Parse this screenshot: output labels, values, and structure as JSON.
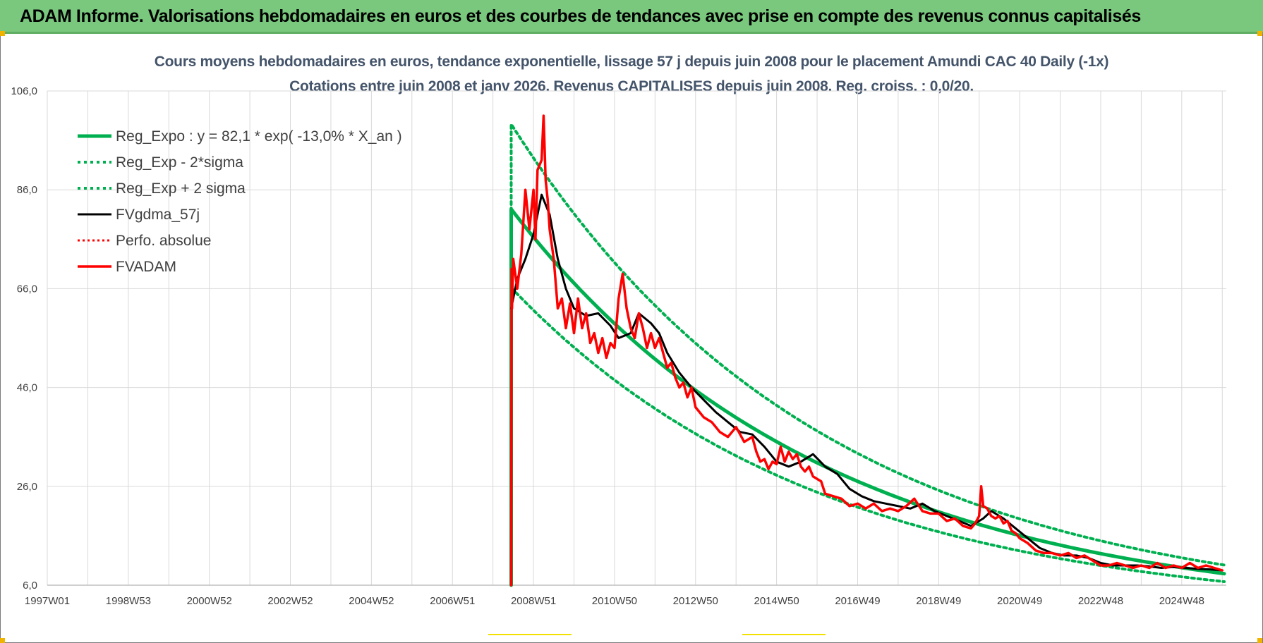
{
  "banner": {
    "title": "ADAM Informe. Valorisations hebdomadaires en euros et des courbes de tendances avec prise en compte des revenus connus capitalisés"
  },
  "colors": {
    "banner_bg": "#79c87e",
    "title_text": "#44546a",
    "reg_green": "#00b050",
    "fv_black": "#000000",
    "fvadam_red": "#ff0000"
  },
  "chart_data": {
    "type": "line",
    "title": "Cours moyens hebdomadaires en euros, tendance exponentielle, lissage 57 j depuis juin 2008 pour le placement Amundi CAC 40 Daily (-1x)",
    "subtitle": "Cotations entre juin 2008 et janv 2026. Revenus CAPITALISES depuis juin 2008. Reg. croiss. : 0,0/20.",
    "xlabel": "",
    "ylabel": "",
    "xlim": [
      1997.0,
      2026.1
    ],
    "ylim": [
      6,
      106
    ],
    "grid": true,
    "legend_position": "top-left",
    "x_tick_labels": [
      "1997W01",
      "1998W53",
      "2000W52",
      "2002W52",
      "2004W52",
      "2006W51",
      "2008W51",
      "2010W50",
      "2012W50",
      "2014W50",
      "2016W49",
      "2018W49",
      "2020W49",
      "2022W48",
      "2024W48"
    ],
    "x_tick_values": [
      1997.0,
      1999.0,
      2001.0,
      2003.0,
      2005.0,
      2007.0,
      2009.0,
      2011.0,
      2013.0,
      2015.0,
      2017.0,
      2019.0,
      2021.0,
      2023.0,
      2025.0
    ],
    "y_ticks": [
      6,
      26,
      46,
      66,
      86,
      106
    ],
    "y_tick_labels": [
      "6,0",
      "26,0",
      "46,0",
      "66,0",
      "86,0",
      "106,0"
    ],
    "series": [
      {
        "name": "Reg_Expo : y = 82,1 * exp( -13,0% *  X_an )",
        "style": "solid-green",
        "model": {
          "a": 82.1,
          "b": -0.13,
          "x0": 2008.45
        }
      },
      {
        "name": "Reg_Exp - 2*sigma",
        "style": "dotted-green",
        "model": {
          "a": 66.2,
          "b": -0.13,
          "x0": 2008.45
        }
      },
      {
        "name": "Reg_Exp + 2 sigma",
        "style": "dotted-green",
        "model": {
          "a": 99.3,
          "b": -0.13,
          "x0": 2008.45
        }
      },
      {
        "name": "FVgdma_57j",
        "style": "solid-black",
        "x": [
          2008.45,
          2008.6,
          2008.8,
          2009.0,
          2009.2,
          2009.4,
          2009.6,
          2009.8,
          2010.0,
          2010.3,
          2010.6,
          2010.9,
          2011.1,
          2011.4,
          2011.6,
          2011.9,
          2012.1,
          2012.3,
          2012.6,
          2012.9,
          2013.2,
          2013.5,
          2013.8,
          2014.1,
          2014.4,
          2014.7,
          2015.0,
          2015.3,
          2015.6,
          2015.9,
          2016.2,
          2016.5,
          2016.8,
          2017.1,
          2017.4,
          2017.7,
          2018.0,
          2018.3,
          2018.6,
          2018.9,
          2019.2,
          2019.5,
          2019.8,
          2020.1,
          2020.3,
          2020.6,
          2020.9,
          2021.2,
          2021.5,
          2021.8,
          2022.1,
          2022.4,
          2022.7,
          2023.0,
          2023.3,
          2023.6,
          2023.9,
          2024.2,
          2024.5,
          2024.8,
          2025.1,
          2025.4,
          2025.7,
          2026.0
        ],
        "y": [
          62.0,
          68.0,
          72.0,
          77.0,
          85.0,
          81.0,
          72.0,
          66.0,
          62.0,
          60.5,
          61.0,
          58.5,
          56.0,
          57.0,
          61.0,
          59.0,
          57.0,
          53.0,
          49.0,
          46.0,
          43.5,
          41.0,
          39.0,
          37.0,
          36.5,
          34.0,
          31.0,
          30.0,
          31.0,
          32.5,
          30.0,
          28.5,
          25.5,
          24.0,
          23.0,
          22.5,
          22.0,
          21.5,
          22.5,
          21.0,
          20.0,
          19.0,
          18.0,
          19.5,
          21.0,
          19.5,
          17.5,
          15.5,
          13.5,
          12.5,
          12.0,
          12.0,
          11.5,
          10.5,
          10.0,
          10.0,
          10.0,
          9.8,
          9.5,
          9.7,
          9.5,
          9.3,
          9.2,
          9.0
        ]
      },
      {
        "name": "Perfo. absolue",
        "style": "dotted-red",
        "x": [],
        "y": []
      },
      {
        "name": "FVADAM",
        "style": "solid-red",
        "x": [
          2008.45,
          2008.46,
          2008.47,
          2008.5,
          2008.6,
          2008.7,
          2008.8,
          2008.9,
          2009.0,
          2009.05,
          2009.1,
          2009.2,
          2009.25,
          2009.3,
          2009.35,
          2009.4,
          2009.5,
          2009.6,
          2009.7,
          2009.8,
          2009.9,
          2010.0,
          2010.1,
          2010.2,
          2010.3,
          2010.4,
          2010.5,
          2010.6,
          2010.7,
          2010.8,
          2010.9,
          2011.0,
          2011.1,
          2011.2,
          2011.3,
          2011.4,
          2011.5,
          2011.6,
          2011.7,
          2011.8,
          2011.9,
          2012.0,
          2012.1,
          2012.2,
          2012.3,
          2012.4,
          2012.5,
          2012.6,
          2012.7,
          2012.8,
          2012.9,
          2013.0,
          2013.2,
          2013.4,
          2013.6,
          2013.8,
          2014.0,
          2014.2,
          2014.4,
          2014.5,
          2014.6,
          2014.7,
          2014.8,
          2014.9,
          2015.0,
          2015.1,
          2015.2,
          2015.3,
          2015.4,
          2015.5,
          2015.6,
          2015.7,
          2015.8,
          2015.9,
          2016.0,
          2016.1,
          2016.2,
          2016.4,
          2016.6,
          2016.8,
          2017.0,
          2017.2,
          2017.4,
          2017.6,
          2017.8,
          2018.0,
          2018.2,
          2018.4,
          2018.6,
          2018.8,
          2019.0,
          2019.2,
          2019.4,
          2019.6,
          2019.8,
          2019.9,
          2020.0,
          2020.05,
          2020.1,
          2020.2,
          2020.3,
          2020.4,
          2020.5,
          2020.6,
          2020.7,
          2020.8,
          2020.9,
          2021.0,
          2021.2,
          2021.4,
          2021.6,
          2021.8,
          2022.0,
          2022.2,
          2022.4,
          2022.6,
          2022.8,
          2023.0,
          2023.2,
          2023.4,
          2023.6,
          2023.8,
          2024.0,
          2024.2,
          2024.4,
          2024.6,
          2024.8,
          2025.0,
          2025.2,
          2025.4,
          2025.6,
          2025.8,
          2026.0
        ],
        "y": [
          6.0,
          70.0,
          62.0,
          72.0,
          66.0,
          73.0,
          86.0,
          78.0,
          86.0,
          76.0,
          90.0,
          92.0,
          101.0,
          88.0,
          84.0,
          78.0,
          72.0,
          62.0,
          64.0,
          58.0,
          63.0,
          57.0,
          64.0,
          58.0,
          61.0,
          55.0,
          57.0,
          53.0,
          56.0,
          52.0,
          55.0,
          54.0,
          64.0,
          69.0,
          62.0,
          58.0,
          56.0,
          61.0,
          58.0,
          54.0,
          57.0,
          54.0,
          56.0,
          53.0,
          50.0,
          51.0,
          48.0,
          46.0,
          47.0,
          44.0,
          46.0,
          42.0,
          40.0,
          39.0,
          37.0,
          36.0,
          38.0,
          35.0,
          36.0,
          33.0,
          31.0,
          31.5,
          29.5,
          31.0,
          30.5,
          34.0,
          31.0,
          33.0,
          31.5,
          32.5,
          30.0,
          29.0,
          30.0,
          28.0,
          27.5,
          27.0,
          24.5,
          24.0,
          23.5,
          22.0,
          22.5,
          21.5,
          22.5,
          21.0,
          21.5,
          21.0,
          22.0,
          23.5,
          21.0,
          20.5,
          20.5,
          19.0,
          19.5,
          18.0,
          17.5,
          18.5,
          20.0,
          26.0,
          22.0,
          21.5,
          20.0,
          19.5,
          20.0,
          18.5,
          19.0,
          17.0,
          16.5,
          15.5,
          14.5,
          13.0,
          12.5,
          12.5,
          12.0,
          12.5,
          11.5,
          12.0,
          11.0,
          10.0,
          10.0,
          10.5,
          10.0,
          9.5,
          10.0,
          9.5,
          10.5,
          9.5,
          10.0,
          9.5,
          10.5,
          9.5,
          10.0,
          9.5,
          9.0
        ]
      }
    ]
  }
}
